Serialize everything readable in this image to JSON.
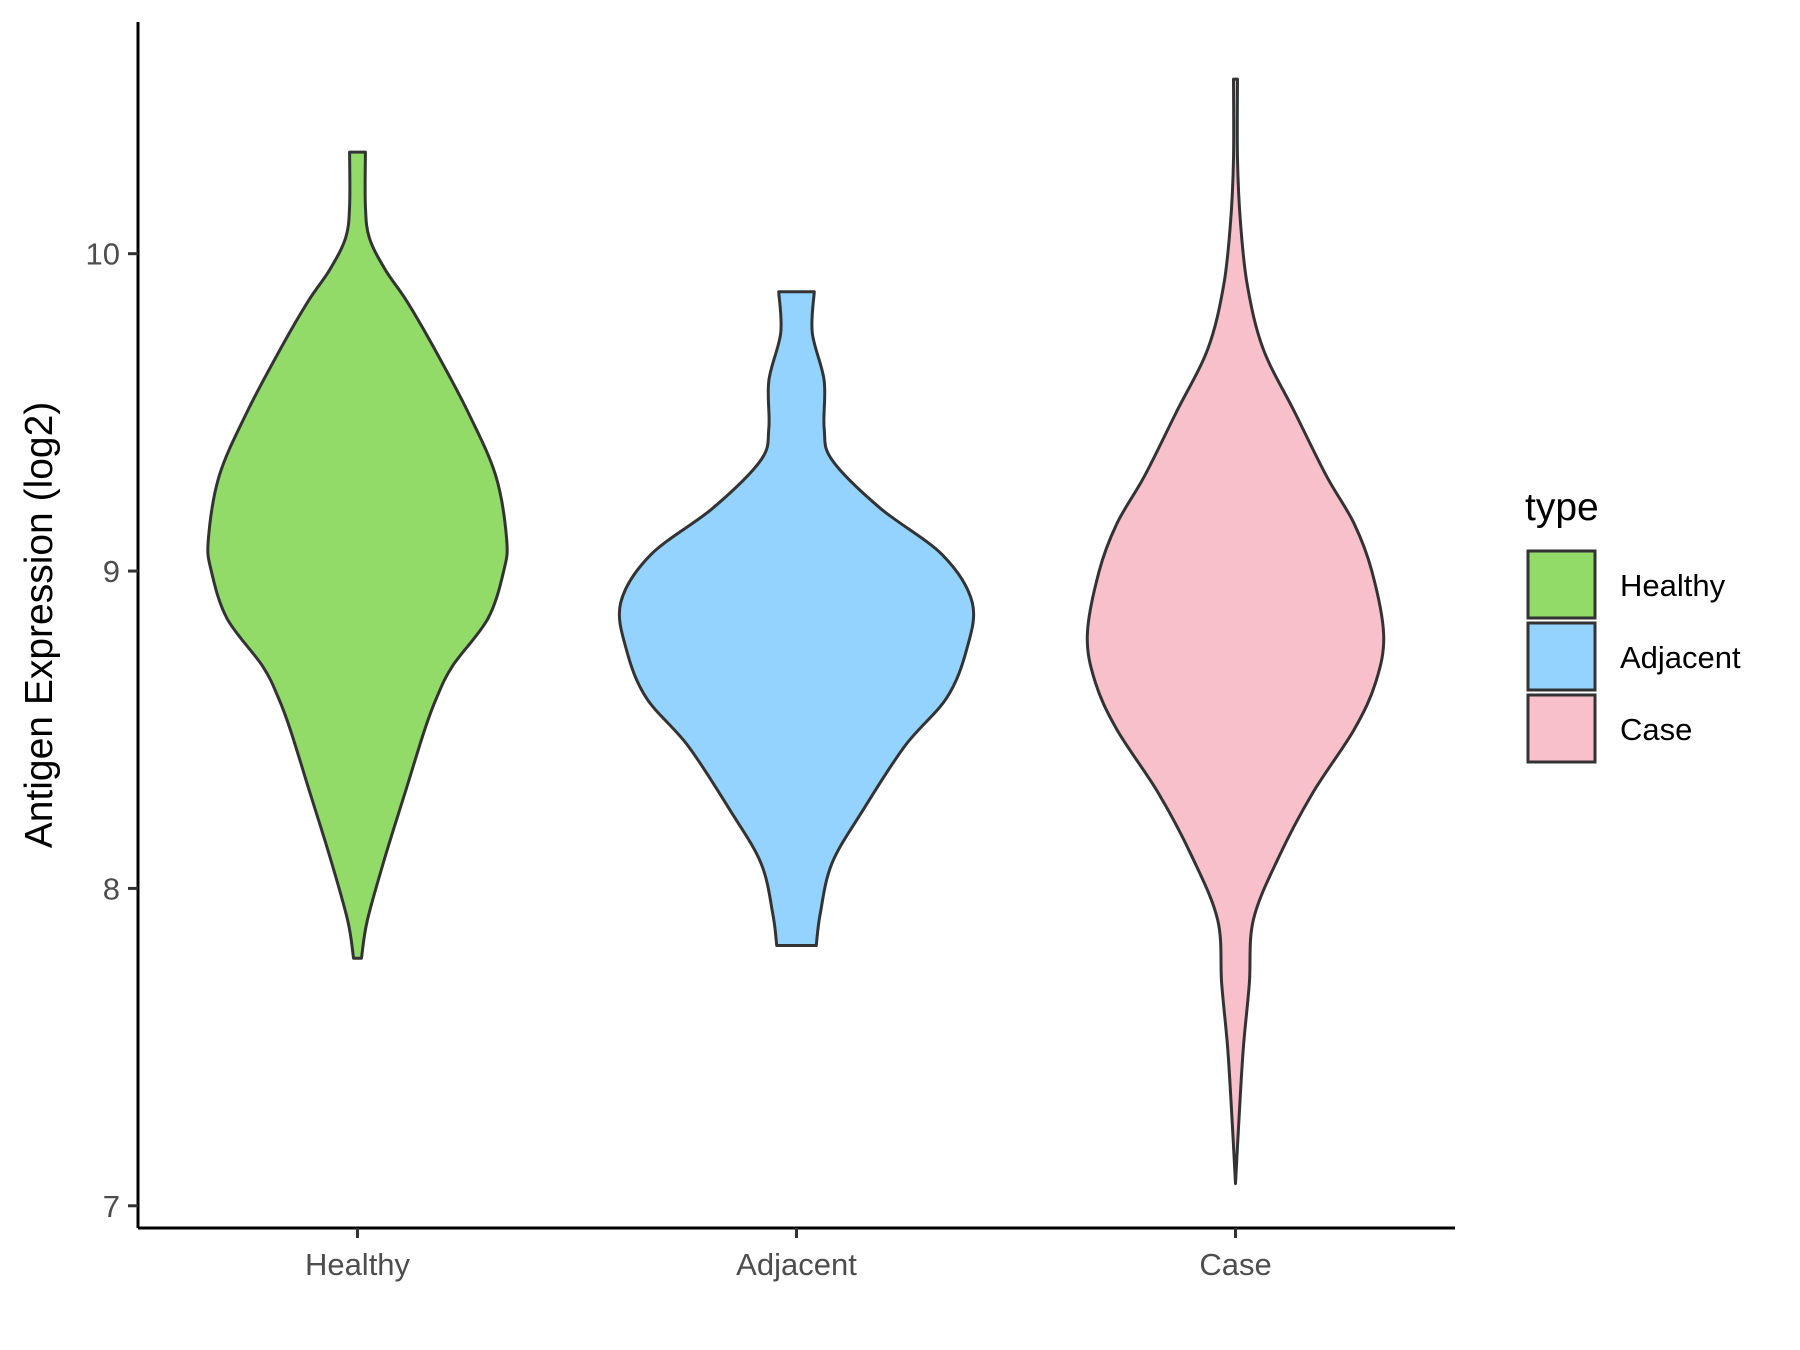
{
  "chart_data": {
    "type": "violin",
    "ylabel": "Antigen Expression (log2)",
    "xlabel": "",
    "title": "",
    "categories": [
      "Healthy",
      "Adjacent",
      "Case"
    ],
    "ylim": [
      6.93,
      10.73
    ],
    "yticks": [
      7,
      8,
      9,
      10
    ],
    "grid": false,
    "legend": {
      "title": "type",
      "placement": "right",
      "entries": [
        {
          "label": "Healthy",
          "color": "#93db69"
        },
        {
          "label": "Adjacent",
          "color": "#93d3fd"
        },
        {
          "label": "Case",
          "color": "#f8c0cb"
        }
      ]
    },
    "outline_color": "#333333",
    "series": [
      {
        "name": "Healthy",
        "color": "#93db69",
        "min": 7.78,
        "max": 10.32,
        "profile": [
          [
            7.78,
            0.02
          ],
          [
            7.9,
            0.05
          ],
          [
            8.1,
            0.14
          ],
          [
            8.3,
            0.24
          ],
          [
            8.5,
            0.34
          ],
          [
            8.6,
            0.4
          ],
          [
            8.7,
            0.48
          ],
          [
            8.85,
            0.66
          ],
          [
            9.0,
            0.74
          ],
          [
            9.1,
            0.755
          ],
          [
            9.3,
            0.7
          ],
          [
            9.5,
            0.56
          ],
          [
            9.7,
            0.39
          ],
          [
            9.85,
            0.25
          ],
          [
            9.95,
            0.14
          ],
          [
            10.05,
            0.06
          ],
          [
            10.15,
            0.04
          ],
          [
            10.32,
            0.04
          ]
        ]
      },
      {
        "name": "Adjacent",
        "color": "#93d3fd",
        "min": 7.82,
        "max": 9.88,
        "profile": [
          [
            7.82,
            0.1
          ],
          [
            7.92,
            0.12
          ],
          [
            8.08,
            0.18
          ],
          [
            8.25,
            0.34
          ],
          [
            8.45,
            0.55
          ],
          [
            8.6,
            0.76
          ],
          [
            8.75,
            0.86
          ],
          [
            8.9,
            0.89
          ],
          [
            9.05,
            0.74
          ],
          [
            9.2,
            0.42
          ],
          [
            9.35,
            0.18
          ],
          [
            9.45,
            0.14
          ],
          [
            9.6,
            0.14
          ],
          [
            9.75,
            0.08
          ],
          [
            9.88,
            0.09
          ]
        ]
      },
      {
        "name": "Case",
        "color": "#f8c0cb",
        "min": 7.07,
        "max": 10.55,
        "profile": [
          [
            7.07,
            0.0
          ],
          [
            7.3,
            0.02
          ],
          [
            7.5,
            0.04
          ],
          [
            7.7,
            0.07
          ],
          [
            7.9,
            0.09
          ],
          [
            8.1,
            0.22
          ],
          [
            8.3,
            0.39
          ],
          [
            8.5,
            0.6
          ],
          [
            8.65,
            0.71
          ],
          [
            8.8,
            0.75
          ],
          [
            9.0,
            0.69
          ],
          [
            9.15,
            0.6
          ],
          [
            9.3,
            0.46
          ],
          [
            9.5,
            0.3
          ],
          [
            9.7,
            0.14
          ],
          [
            9.9,
            0.06
          ],
          [
            10.1,
            0.025
          ],
          [
            10.3,
            0.01
          ],
          [
            10.55,
            0.01
          ]
        ]
      }
    ]
  }
}
